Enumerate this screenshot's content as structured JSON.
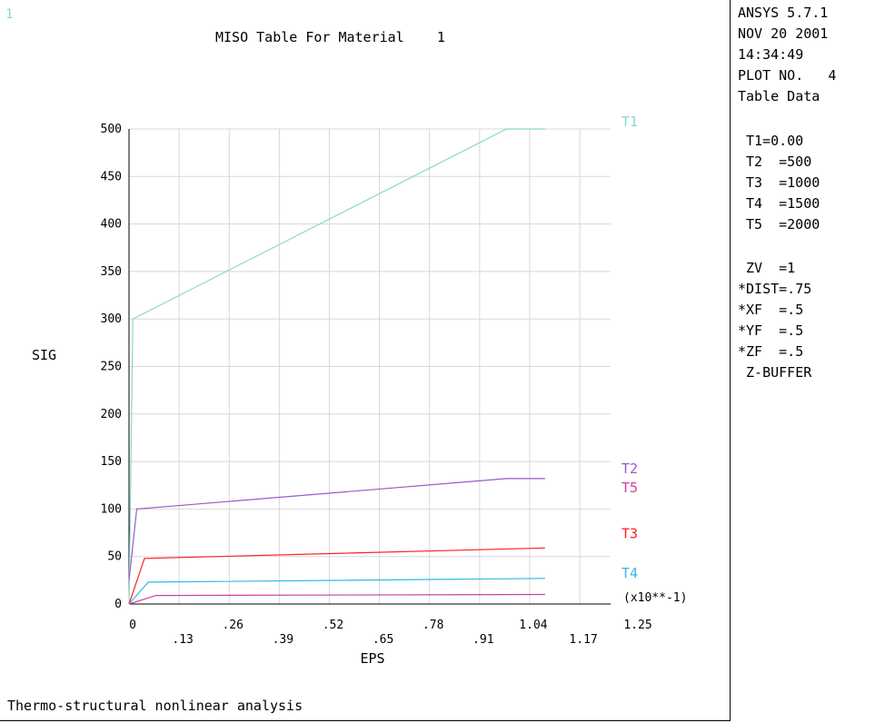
{
  "window_number": "1",
  "title": "MISO Table For Material    1",
  "footer": "Thermo-structural nonlinear analysis",
  "info_panel": {
    "header_lines": [
      "ANSYS 5.7.1",
      "NOV 20 2001",
      "14:34:49",
      "PLOT NO.   4",
      "Table Data"
    ],
    "temp_lines": [
      "T1=0.00",
      "T2  =500",
      "T3  =1000",
      "T4  =1500",
      "T5  =2000"
    ],
    "view_lines": [
      " ZV  =1",
      "*DIST=.75",
      "*XF  =.5",
      "*YF  =.5",
      "*ZF  =.5",
      " Z-BUFFER"
    ]
  },
  "chart_data": {
    "type": "line",
    "xlabel": "EPS",
    "ylabel": "SIG",
    "x_multiplier_label": "(x10**-1)",
    "xlim": [
      0,
      1.25
    ],
    "ylim": [
      0,
      500
    ],
    "x_ticks_row1": [
      "0",
      ".26",
      ".52",
      ".78",
      "1.04"
    ],
    "x_ticks_row1_values": [
      0,
      0.26,
      0.52,
      0.78,
      1.04
    ],
    "x_ticks_row2": [
      ".13",
      ".39",
      ".65",
      ".91",
      "1.17"
    ],
    "x_ticks_row2_values": [
      0.13,
      0.39,
      0.65,
      0.91,
      1.17
    ],
    "x_last_tick": "1.25",
    "y_ticks": [
      "0",
      "50",
      "100",
      "150",
      "200",
      "250",
      "300",
      "350",
      "400",
      "450",
      "500"
    ],
    "y_tick_values": [
      0,
      50,
      100,
      150,
      200,
      250,
      300,
      350,
      400,
      450,
      500
    ],
    "grid": true,
    "grid_color": "#d8d8d8",
    "series": [
      {
        "name": "T1",
        "color": "#88d8d0",
        "x": [
          0,
          0.01,
          0.98,
          1.08
        ],
        "y": [
          0,
          300,
          500,
          500
        ]
      },
      {
        "name": "T2",
        "color": "#9a5ac8",
        "x": [
          0,
          0.02,
          0.98,
          1.08
        ],
        "y": [
          25,
          100,
          132,
          132
        ]
      },
      {
        "name": "T3",
        "color": "#ff2020",
        "x": [
          0,
          0.04,
          1.08
        ],
        "y": [
          0,
          48,
          59
        ]
      },
      {
        "name": "T4",
        "color": "#30b8e0",
        "x": [
          0,
          0.05,
          1.08
        ],
        "y": [
          0,
          23,
          27
        ]
      },
      {
        "name": "T5",
        "color": "#d040a0",
        "x": [
          0,
          0.07,
          1.08
        ],
        "y": [
          0,
          9,
          10
        ]
      }
    ],
    "labels": [
      {
        "text": "T1",
        "series": "T1"
      },
      {
        "text": "T2",
        "series": "T2"
      },
      {
        "text": "T5",
        "series": "T5"
      },
      {
        "text": "T3",
        "series": "T3"
      },
      {
        "text": "T4",
        "series": "T4"
      }
    ]
  }
}
